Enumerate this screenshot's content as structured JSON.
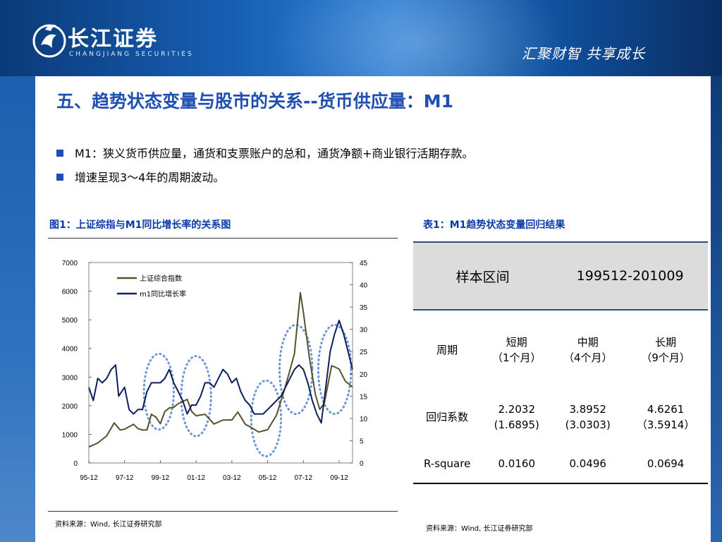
{
  "header": {
    "company_name": "长江证券",
    "company_sub": "CHANGJIANG SECURITIES",
    "slogan": "汇聚财智 共享成长",
    "brand_color": "#1f4fb3"
  },
  "slide": {
    "title": "五、趋势状态变量与股市的关系--货币供应量：M1",
    "bullets": [
      "M1：狭义货币供应量，通货和支票账户的总和，通货净额+商业银行活期存款。",
      "增速呈现3～4年的周期波动。"
    ]
  },
  "figure": {
    "caption": "图1：上证综指与M1同比增长率的关系图",
    "source": "资料来源：Wind, 长江证券研究部"
  },
  "chart_data": {
    "type": "line",
    "title": "",
    "xlabel": "",
    "ylabel": "",
    "x_tick_labels": [
      "95-12",
      "97-12",
      "99-12",
      "01-12",
      "03-12",
      "05-12",
      "07-12",
      "09-12"
    ],
    "x_range": [
      "1995-12",
      "2010-09"
    ],
    "y_left_ticks": [
      0,
      1000,
      2000,
      3000,
      4000,
      5000,
      6000,
      7000
    ],
    "y_right_ticks": [
      0,
      5,
      10,
      15,
      20,
      25,
      30,
      35,
      40,
      45
    ],
    "ylim_left": [
      0,
      7000
    ],
    "ylim_right": [
      0,
      45
    ],
    "legend_position": "top-left",
    "series": [
      {
        "name": "上证综合指数",
        "axis": "left",
        "color": "#57522a",
        "points": [
          [
            "1995-12",
            560
          ],
          [
            "1996-06",
            700
          ],
          [
            "1996-12",
            950
          ],
          [
            "1997-05",
            1400
          ],
          [
            "1997-09",
            1150
          ],
          [
            "1997-12",
            1180
          ],
          [
            "1998-06",
            1350
          ],
          [
            "1998-09",
            1200
          ],
          [
            "1998-12",
            1150
          ],
          [
            "1999-03",
            1150
          ],
          [
            "1999-06",
            1700
          ],
          [
            "1999-09",
            1600
          ],
          [
            "1999-12",
            1370
          ],
          [
            "2000-03",
            1800
          ],
          [
            "2000-06",
            1920
          ],
          [
            "2000-09",
            1950
          ],
          [
            "2000-12",
            2070
          ],
          [
            "2001-06",
            2220
          ],
          [
            "2001-09",
            1800
          ],
          [
            "2001-12",
            1650
          ],
          [
            "2002-06",
            1700
          ],
          [
            "2002-12",
            1360
          ],
          [
            "2003-06",
            1500
          ],
          [
            "2003-12",
            1500
          ],
          [
            "2004-04",
            1780
          ],
          [
            "2004-09",
            1350
          ],
          [
            "2004-12",
            1270
          ],
          [
            "2005-06",
            1080
          ],
          [
            "2005-12",
            1160
          ],
          [
            "2006-06",
            1670
          ],
          [
            "2006-12",
            2680
          ],
          [
            "2007-06",
            3820
          ],
          [
            "2007-10",
            5950
          ],
          [
            "2007-12",
            5260
          ],
          [
            "2008-04",
            3700
          ],
          [
            "2008-08",
            2400
          ],
          [
            "2008-11",
            1870
          ],
          [
            "2009-02",
            2080
          ],
          [
            "2009-07",
            3400
          ],
          [
            "2009-12",
            3280
          ],
          [
            "2010-04",
            2870
          ],
          [
            "2010-09",
            2650
          ]
        ]
      },
      {
        "name": "m1同比增长率",
        "axis": "right",
        "color": "#0d1f5c",
        "points": [
          [
            "1995-12",
            17
          ],
          [
            "1996-03",
            14
          ],
          [
            "1996-06",
            19
          ],
          [
            "1996-09",
            18
          ],
          [
            "1996-12",
            19
          ],
          [
            "1997-03",
            21
          ],
          [
            "1997-06",
            22
          ],
          [
            "1997-08",
            15
          ],
          [
            "1997-12",
            17
          ],
          [
            "1998-03",
            12
          ],
          [
            "1998-06",
            11
          ],
          [
            "1998-09",
            12
          ],
          [
            "1998-12",
            12
          ],
          [
            "1999-03",
            16
          ],
          [
            "1999-06",
            18
          ],
          [
            "1999-09",
            18
          ],
          [
            "1999-12",
            18
          ],
          [
            "2000-03",
            19
          ],
          [
            "2000-06",
            21
          ],
          [
            "2000-09",
            18
          ],
          [
            "2000-12",
            16
          ],
          [
            "2001-03",
            14
          ],
          [
            "2001-06",
            11
          ],
          [
            "2001-09",
            13
          ],
          [
            "2001-12",
            13
          ],
          [
            "2002-03",
            15
          ],
          [
            "2002-06",
            18
          ],
          [
            "2002-09",
            18
          ],
          [
            "2002-12",
            17
          ],
          [
            "2003-03",
            19
          ],
          [
            "2003-06",
            21
          ],
          [
            "2003-09",
            20
          ],
          [
            "2003-12",
            18
          ],
          [
            "2004-03",
            19
          ],
          [
            "2004-06",
            16
          ],
          [
            "2004-09",
            14
          ],
          [
            "2004-12",
            13
          ],
          [
            "2005-03",
            11
          ],
          [
            "2005-06",
            11
          ],
          [
            "2005-09",
            11
          ],
          [
            "2005-12",
            12
          ],
          [
            "2006-03",
            13
          ],
          [
            "2006-06",
            14
          ],
          [
            "2006-09",
            15
          ],
          [
            "2006-12",
            17
          ],
          [
            "2007-03",
            19
          ],
          [
            "2007-06",
            21
          ],
          [
            "2007-09",
            22
          ],
          [
            "2007-12",
            21
          ],
          [
            "2008-03",
            18
          ],
          [
            "2008-06",
            14
          ],
          [
            "2008-09",
            11
          ],
          [
            "2008-12",
            9
          ],
          [
            "2009-03",
            17
          ],
          [
            "2009-06",
            25
          ],
          [
            "2009-09",
            29
          ],
          [
            "2009-12",
            32
          ],
          [
            "2010-03",
            29
          ],
          [
            "2010-06",
            25
          ],
          [
            "2010-09",
            21
          ]
        ]
      }
    ],
    "annotations": "dotted blue ellipses around cycle peaks and troughs"
  },
  "table": {
    "caption": "表1：M1趋势状态变量回归结果",
    "source": "资料来源：Wind, 长江证券研究部",
    "header_label": "样本区间",
    "header_value": "199512-201009",
    "period_label": "周期",
    "periods": [
      {
        "name": "短期",
        "sub": "（1个月）"
      },
      {
        "name": "中期",
        "sub": "（4个月）"
      },
      {
        "name": "长期",
        "sub": "（9个月）"
      }
    ],
    "coef_label": "回归系数",
    "coefs": [
      {
        "value": "2.2032",
        "t": "(1.6895)"
      },
      {
        "value": "3.8952",
        "t": "(3.0303)"
      },
      {
        "value": "4.6261",
        "t": "（3.5914）"
      }
    ],
    "rsq_label": "R-square",
    "rsq": [
      "0.0160",
      "0.0496",
      "0.0694"
    ]
  }
}
